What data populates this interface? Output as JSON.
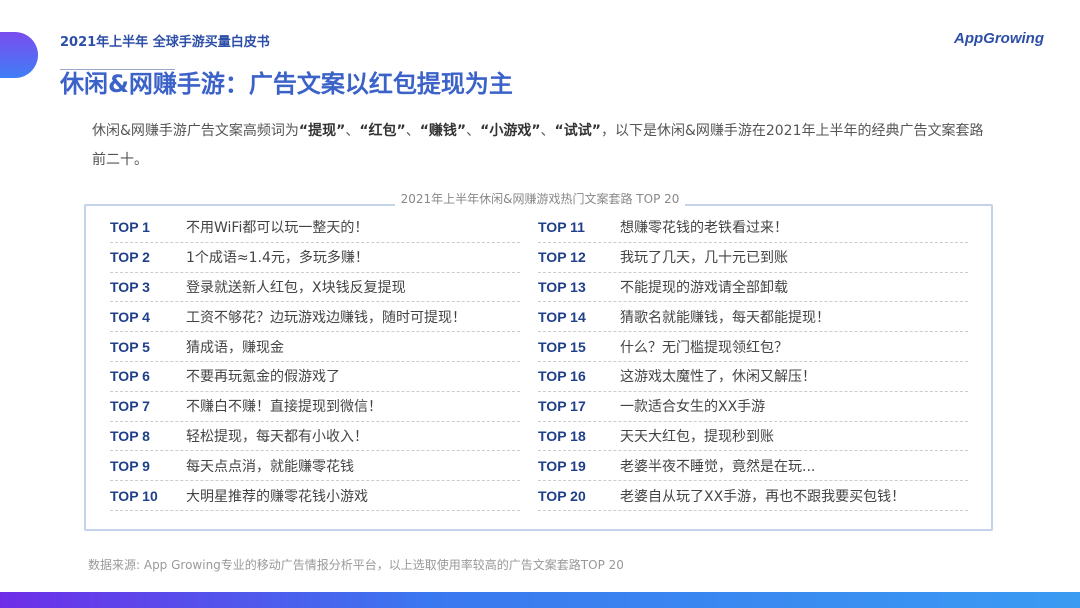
{
  "header": {
    "report": "2021年上半年 全球手游买量白皮书",
    "logo": "AppGrowing"
  },
  "title": "休闲&网赚手游：广告文案以红包提现为主",
  "intro": {
    "lead": "休闲&网赚手游广告文案高频词为",
    "keywords": [
      "“提现”",
      "“红包”",
      "“赚钱”",
      "“小游戏”",
      "“试试”"
    ],
    "sep": "、",
    "tail": "，以下是休闲&网赚手游在2021年上半年的经典广告文案套路前二十。"
  },
  "table": {
    "caption": "2021年上半年休闲&网赚游戏热门文案套路 TOP 20",
    "left": [
      {
        "rank": "TOP 1",
        "text": "不用WiFi都可以玩一整天的！"
      },
      {
        "rank": "TOP 2",
        "text": "1个成语≈1.4元，多玩多赚！"
      },
      {
        "rank": "TOP 3",
        "text": "登录就送新人红包，X块钱反复提现"
      },
      {
        "rank": "TOP 4",
        "text": "工资不够花？边玩游戏边赚钱，随时可提现！"
      },
      {
        "rank": "TOP 5",
        "text": "猜成语，赚现金"
      },
      {
        "rank": "TOP 6",
        "text": "不要再玩氪金的假游戏了"
      },
      {
        "rank": "TOP 7",
        "text": "不赚白不赚！直接提现到微信！"
      },
      {
        "rank": "TOP 8",
        "text": "轻松提现，每天都有小收入！"
      },
      {
        "rank": "TOP 9",
        "text": "每天点点消，就能赚零花钱"
      },
      {
        "rank": "TOP 10",
        "text": "大明星推荐的赚零花钱小游戏"
      }
    ],
    "right": [
      {
        "rank": "TOP 11",
        "text": "想赚零花钱的老铁看过来！"
      },
      {
        "rank": "TOP 12",
        "text": "我玩了几天，几十元已到账"
      },
      {
        "rank": "TOP 13",
        "text": "不能提现的游戏请全部卸载"
      },
      {
        "rank": "TOP 14",
        "text": "猜歌名就能赚钱，每天都能提现！"
      },
      {
        "rank": "TOP 15",
        "text": "什么？无门槛提现领红包？"
      },
      {
        "rank": "TOP 16",
        "text": "这游戏太魔性了，休闲又解压！"
      },
      {
        "rank": "TOP 17",
        "text": "一款适合女生的XX手游"
      },
      {
        "rank": "TOP 18",
        "text": "天天大红包，提现秒到账"
      },
      {
        "rank": "TOP 19",
        "text": "老婆半夜不睡觉，竟然是在玩..."
      },
      {
        "rank": "TOP 20",
        "text": "老婆自从玩了XX手游，再也不跟我要买包钱！"
      }
    ]
  },
  "source": "数据来源: App Growing专业的移动广告情报分析平台，以上选取使用率较高的广告文案套路TOP 20",
  "colors": {
    "title": "#3b62c8",
    "rank": "#1f3f8a",
    "bar_start": "#6e2ee8",
    "bar_end": "#3a9bf2"
  }
}
